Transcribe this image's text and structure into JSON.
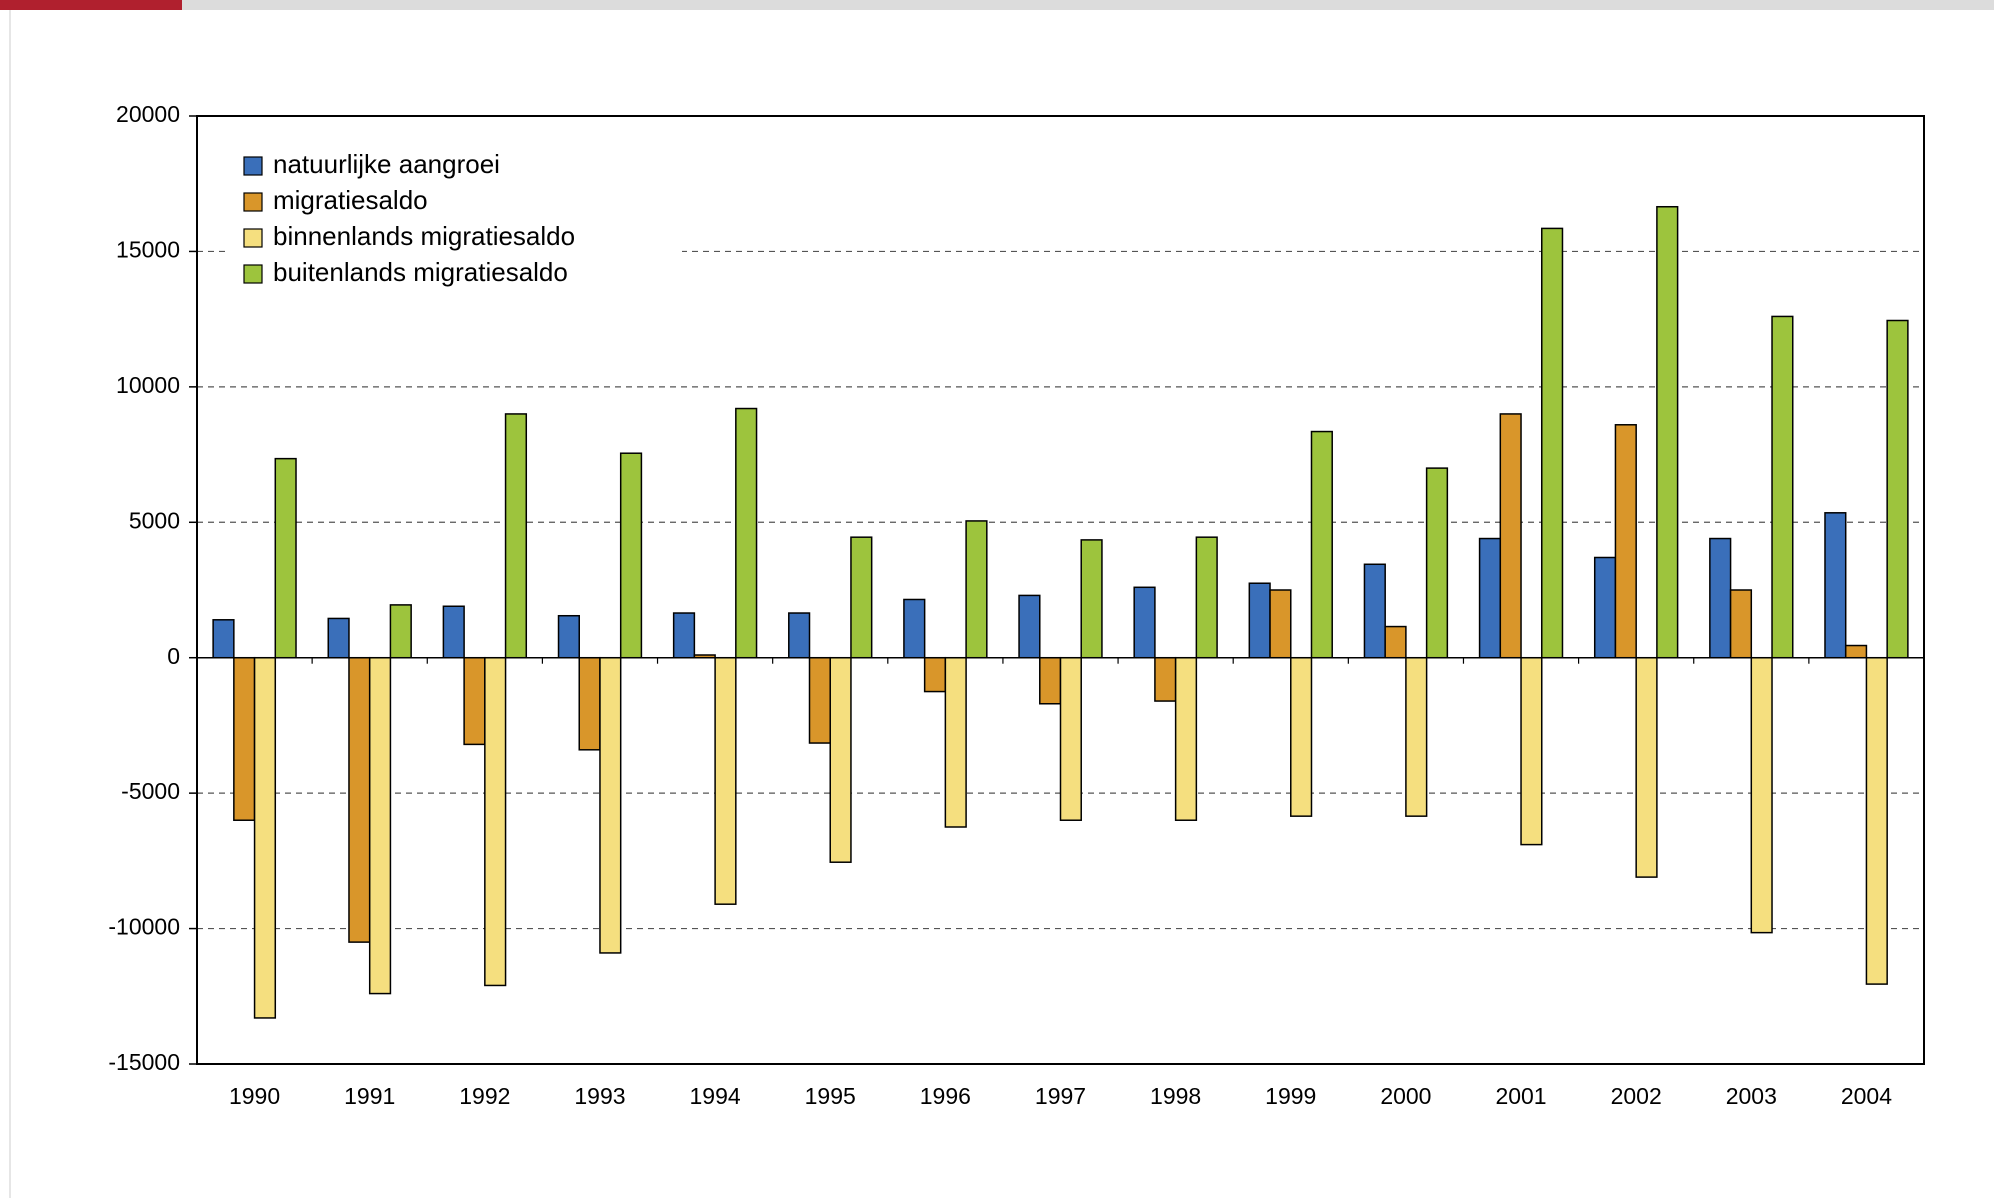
{
  "chart_data": {
    "type": "bar",
    "categories": [
      "1990",
      "1991",
      "1992",
      "1993",
      "1994",
      "1995",
      "1996",
      "1997",
      "1998",
      "1999",
      "2000",
      "2001",
      "2002",
      "2003",
      "2004"
    ],
    "series": [
      {
        "name": "natuurlijke aangroei",
        "color": "#3a6fba",
        "values": [
          1400,
          1450,
          1900,
          1550,
          1650,
          1650,
          2150,
          2300,
          2600,
          2750,
          3450,
          4400,
          3700,
          4400,
          5350
        ]
      },
      {
        "name": "migratiesaldo",
        "color": "#d9962a",
        "values": [
          -6000,
          -10500,
          -3200,
          -3400,
          100,
          -3150,
          -1250,
          -1700,
          -1600,
          2500,
          1150,
          9000,
          8600,
          2500,
          450
        ]
      },
      {
        "name": "binnenlands migratiesaldo",
        "color": "#f5df7f",
        "values": [
          -13300,
          -12400,
          -12100,
          -10900,
          -9100,
          -7550,
          -6250,
          -6000,
          -6000,
          -5850,
          -5850,
          -6900,
          -8100,
          -10150,
          -12050
        ]
      },
      {
        "name": "buitenlands migratiesaldo",
        "color": "#9dc43d",
        "values": [
          7350,
          1950,
          9000,
          7550,
          9200,
          4450,
          5050,
          4350,
          4450,
          8350,
          7000,
          15850,
          16650,
          12600,
          12450
        ]
      }
    ],
    "ylim": [
      -15000,
      20000
    ],
    "yticks": [
      -15000,
      -10000,
      -5000,
      0,
      5000,
      10000,
      15000,
      20000
    ],
    "grid": true,
    "legend": "upper left"
  }
}
